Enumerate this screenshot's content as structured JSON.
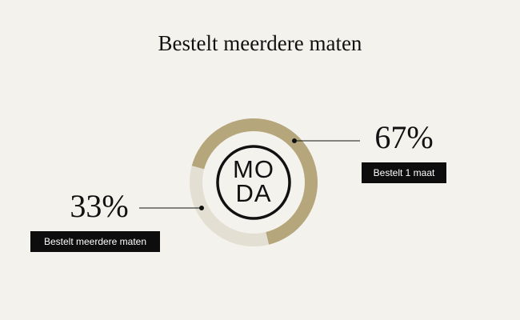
{
  "chart_data": {
    "type": "donut",
    "title": "Bestelt meerdere maten",
    "categories": [
      "Bestelt 1 maat",
      "Bestelt meerdere maten"
    ],
    "values": [
      67,
      33
    ],
    "value_labels": [
      "67%",
      "33%"
    ],
    "colors": [
      "#b5a67b",
      "#e4dfd3"
    ],
    "center_text": [
      "MO",
      "DA"
    ]
  }
}
